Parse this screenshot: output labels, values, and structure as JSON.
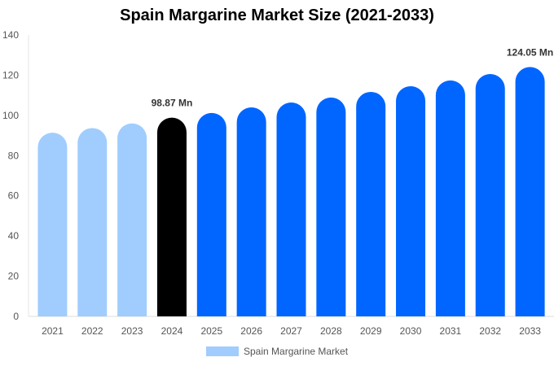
{
  "chart_data": {
    "type": "bar",
    "title": "Spain Margarine Market Size (2021-2033)",
    "categories": [
      "2021",
      "2022",
      "2023",
      "2024",
      "2025",
      "2026",
      "2027",
      "2028",
      "2029",
      "2030",
      "2031",
      "2032",
      "2033"
    ],
    "series": [
      {
        "name": "Spain Margarine Market",
        "values": [
          91.4,
          93.7,
          96.0,
          98.87,
          101.2,
          104.0,
          106.4,
          108.9,
          111.7,
          114.5,
          117.4,
          120.6,
          124.05
        ]
      }
    ],
    "data_labels": {
      "3": "98.87 Mn",
      "12": "124.05 Mn"
    },
    "ylim": [
      0,
      140
    ],
    "yticks": [
      0,
      20,
      40,
      60,
      80,
      100,
      120,
      140
    ],
    "grid": false,
    "legend": "bottom",
    "colors": {
      "historical": "#a0cdfd",
      "base_year": "#000000",
      "forecast": "#0066ff"
    }
  }
}
